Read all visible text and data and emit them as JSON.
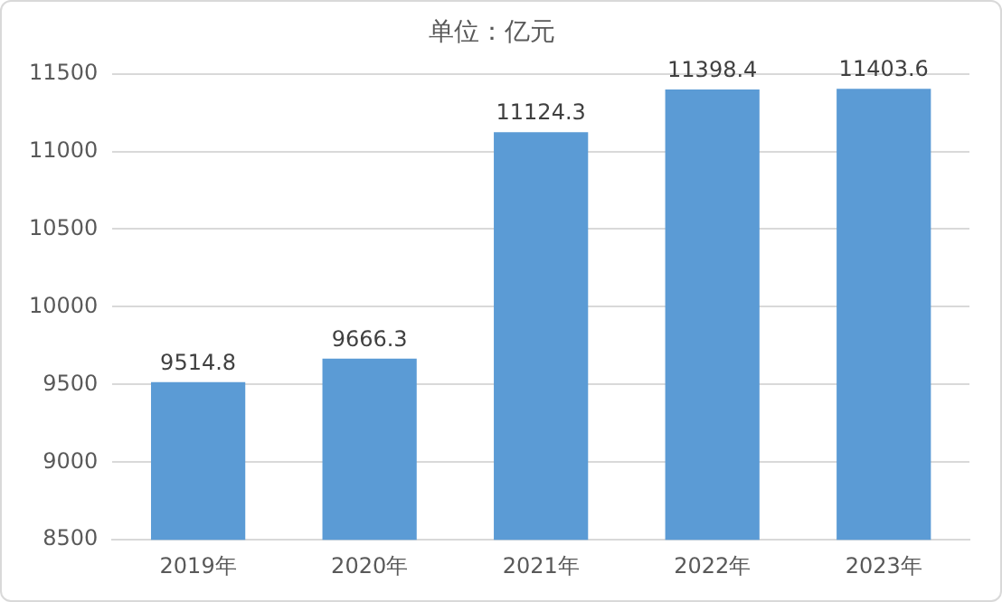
{
  "chart_data": {
    "type": "bar",
    "title": "单位：亿元",
    "categories": [
      "2019年",
      "2020年",
      "2021年",
      "2022年",
      "2023年"
    ],
    "values": [
      9514.8,
      9666.3,
      11124.3,
      11398.4,
      11403.6
    ],
    "color": "#5b9bd5",
    "ylim": [
      8500,
      11500
    ],
    "yticks": [
      8500,
      9000,
      9500,
      10000,
      10500,
      11000,
      11500
    ],
    "grid": "y",
    "data_labels": true
  }
}
